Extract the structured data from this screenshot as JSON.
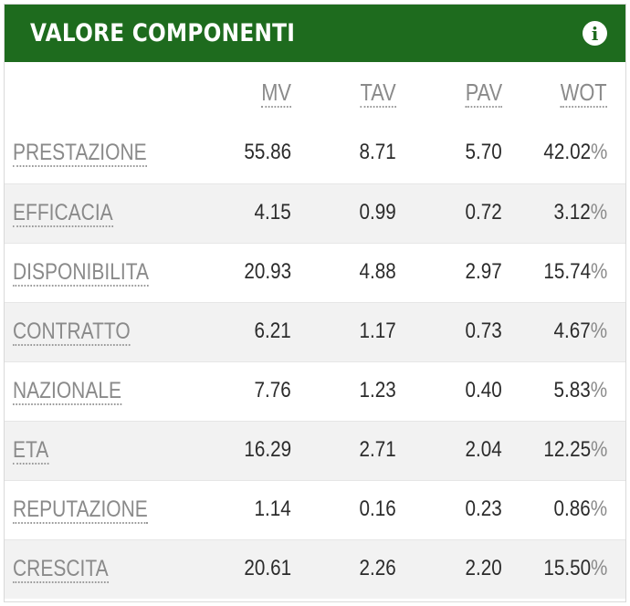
{
  "header": {
    "title": "VALORE COMPONENTI",
    "info_icon": "info-icon"
  },
  "columns": [
    "MV",
    "TAV",
    "PAV",
    "WOT"
  ],
  "rows": [
    {
      "label": "PRESTAZIONE",
      "mv": "55.86",
      "tav": "8.71",
      "pav": "5.70",
      "wot": "42.02",
      "unit": "%"
    },
    {
      "label": "EFFICACIA",
      "mv": "4.15",
      "tav": "0.99",
      "pav": "0.72",
      "wot": "3.12",
      "unit": "%"
    },
    {
      "label": "DISPONIBILITA",
      "mv": "20.93",
      "tav": "4.88",
      "pav": "2.97",
      "wot": "15.74",
      "unit": "%"
    },
    {
      "label": "CONTRATTO",
      "mv": "6.21",
      "tav": "1.17",
      "pav": "0.73",
      "wot": "4.67",
      "unit": "%"
    },
    {
      "label": "NAZIONALE",
      "mv": "7.76",
      "tav": "1.23",
      "pav": "0.40",
      "wot": "5.83",
      "unit": "%"
    },
    {
      "label": "ETA",
      "mv": "16.29",
      "tav": "2.71",
      "pav": "2.04",
      "wot": "12.25",
      "unit": "%"
    },
    {
      "label": "REPUTAZIONE",
      "mv": "1.14",
      "tav": "0.16",
      "pav": "0.23",
      "wot": "0.86",
      "unit": "%"
    },
    {
      "label": "CRESCITA",
      "mv": "20.61",
      "tav": "2.26",
      "pav": "2.20",
      "wot": "15.50",
      "unit": "%"
    }
  ]
}
